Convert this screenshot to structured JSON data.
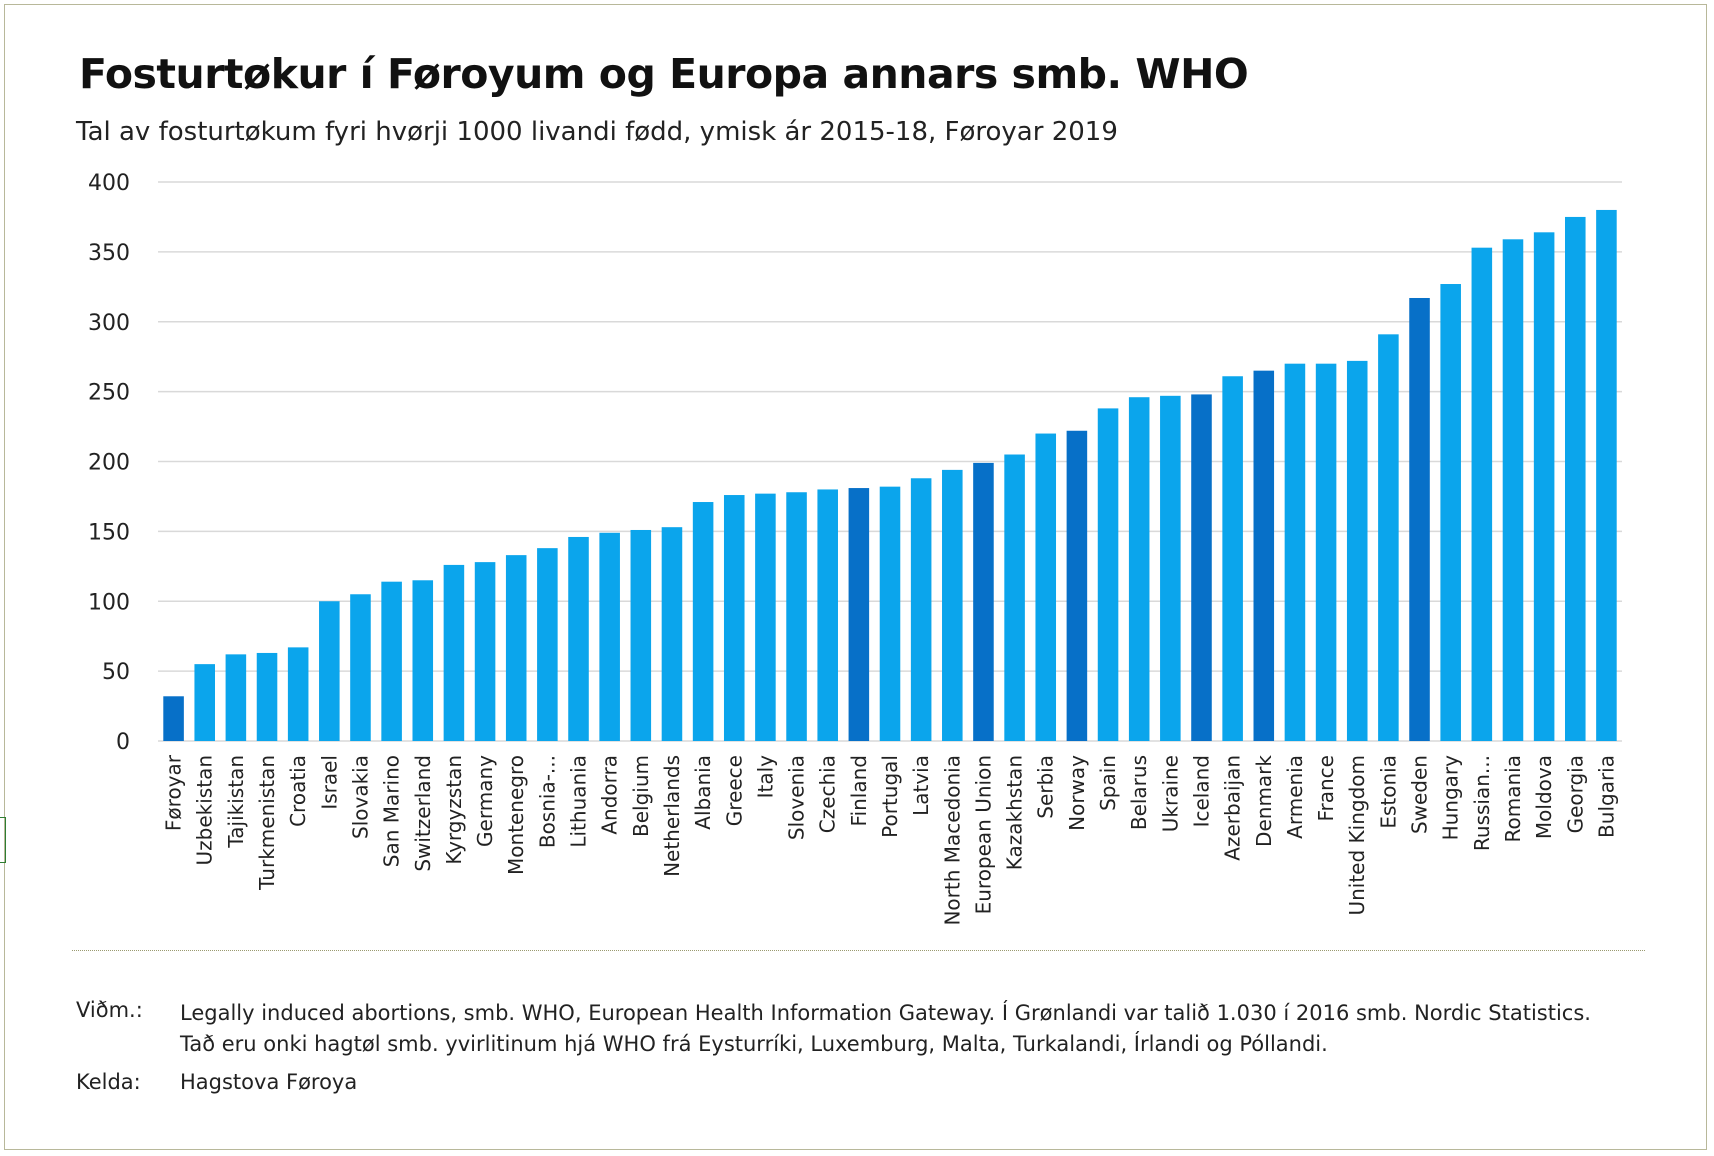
{
  "chart_data": {
    "type": "bar",
    "title": "Fosturtøkur í Føroyum og Europa annars smb. WHO",
    "subtitle": "Tal av fosturtøkum fyri hvørji 1000 livandi fødd, ymisk ár 2015-18, Føroyar 2019",
    "categories": [
      "Føroyar",
      "Uzbekistan",
      "Tajikistan",
      "Turkmenistan",
      "Croatia",
      "Israel",
      "Slovakia",
      "San Marino",
      "Switzerland",
      "Kyrgyzstan",
      "Germany",
      "Montenegro",
      "Bosnia-...",
      "Lithuania",
      "Andorra",
      "Belgium",
      "Netherlands",
      "Albania",
      "Greece",
      "Italy",
      "Slovenia",
      "Czechia",
      "Finland",
      "Portugal",
      "Latvia",
      "North Macedonia",
      "European Union",
      "Kazakhstan",
      "Serbia",
      "Norway",
      "Spain",
      "Belarus",
      "Ukraine",
      "Iceland",
      "Azerbaijan",
      "Denmark",
      "Armenia",
      "France",
      "United Kingdom",
      "Estonia",
      "Sweden",
      "Hungary",
      "Russian...",
      "Romania",
      "Moldova",
      "Georgia",
      "Bulgaria"
    ],
    "values": [
      32,
      55,
      62,
      63,
      67,
      100,
      105,
      114,
      115,
      126,
      128,
      133,
      138,
      146,
      149,
      151,
      153,
      171,
      176,
      177,
      178,
      180,
      181,
      182,
      188,
      194,
      199,
      205,
      220,
      222,
      238,
      246,
      247,
      248,
      261,
      265,
      270,
      270,
      272,
      291,
      317,
      327,
      353,
      359,
      364,
      375,
      380
    ],
    "highlighted": [
      "Føroyar",
      "Finland",
      "European Union",
      "Norway",
      "Iceland",
      "Denmark",
      "Sweden"
    ],
    "ylim": [
      0,
      400
    ],
    "yticks": [
      0,
      50,
      100,
      150,
      200,
      250,
      300,
      350,
      400
    ],
    "xlabel": "",
    "ylabel": "",
    "grid": true,
    "colors": {
      "bar": "#0ba5ec",
      "highlight": "#0770c8",
      "grid": "#d9d9d9"
    }
  },
  "notes": {
    "label": "Viðm.:",
    "line1": "Legally induced abortions, smb. WHO, European Health Information Gateway. Í Grønlandi var talið 1.030 í 2016 smb. Nordic Statistics.",
    "line2": "Tað eru onki hagtøl smb. yvirlitinum hjá WHO frá Eysturríki, Luxemburg, Malta, Turkalandi, Írlandi og Póllandi."
  },
  "source": {
    "label": "Kelda:",
    "text": "Hagstova Føroya"
  }
}
